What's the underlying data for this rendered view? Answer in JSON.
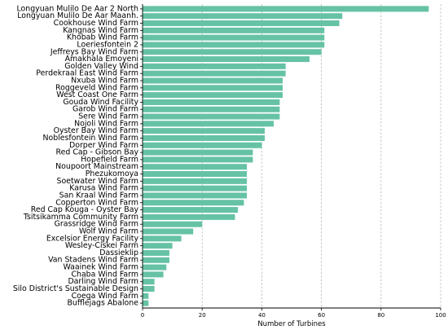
{
  "chart_data": {
    "type": "bar",
    "orientation": "horizontal",
    "categories": [
      "Longyuan Mulilo De Aar 2 North",
      "Longyuan Mulilo De Aar Maanh.",
      "Cookhouse Wind Farm",
      "Kangnas Wind Farm",
      "Khobab Wind Farm",
      "Loeriesfontein 2",
      "Jeffreys Bay Wind Farm",
      "Amakhala Emoyeni",
      "Golden Valley Wind",
      "Perdekraal East Wind Farm",
      "Nxuba Wind Farm",
      "Roggeveld Wind Farm",
      "West Coast One Farm",
      "Gouda Wind Facility",
      "Garob Wind Farm",
      "Sere Wind Farm",
      "Nojoli Wind Farm",
      "Oyster Bay Wind Farm",
      "Noblesfontein Wind Farm",
      "Dorper Wind Farm",
      "Red Cap - Gibson Bay",
      "Hopefield Farm",
      "Noupoort Mainstream",
      "Phezukomoya",
      "Soetwater Wind Farm",
      "Karusa Wind Farm",
      "San Kraal Wind Farm",
      "Copperton Wind Farm",
      "Red Cap Kouga - Oyster Bay",
      "Tsitsikamma Community Farm",
      "Grassridge Wind Farm",
      "Wolf Wind Farm",
      "Excelsior Energy Facility",
      "Wesley-Ciskei Farm",
      "Dassieklip",
      "Van Stadens Wind Farm",
      "Waainek Wind Farm",
      "Chaba Wind Farm",
      "Darling Wind Farm",
      "Silo District's Sustainable Design",
      "Coega Wind Farm",
      "Bufflejags Abalone"
    ],
    "values": [
      96,
      67,
      66,
      61,
      61,
      61,
      60,
      56,
      48,
      48,
      47,
      47,
      47,
      46,
      46,
      46,
      44,
      41,
      41,
      40,
      37,
      37,
      35,
      35,
      35,
      35,
      35,
      34,
      32,
      31,
      20,
      17,
      13,
      10,
      9,
      9,
      8,
      7,
      4,
      4,
      2,
      2
    ],
    "xlabel": "Number of Turbines",
    "ylabel": "",
    "xlim": [
      0,
      100
    ],
    "xticks": [
      "0",
      "20",
      "40",
      "60",
      "80",
      "100"
    ],
    "grid": "x-dashed",
    "bar_color": "#66c2a5"
  }
}
